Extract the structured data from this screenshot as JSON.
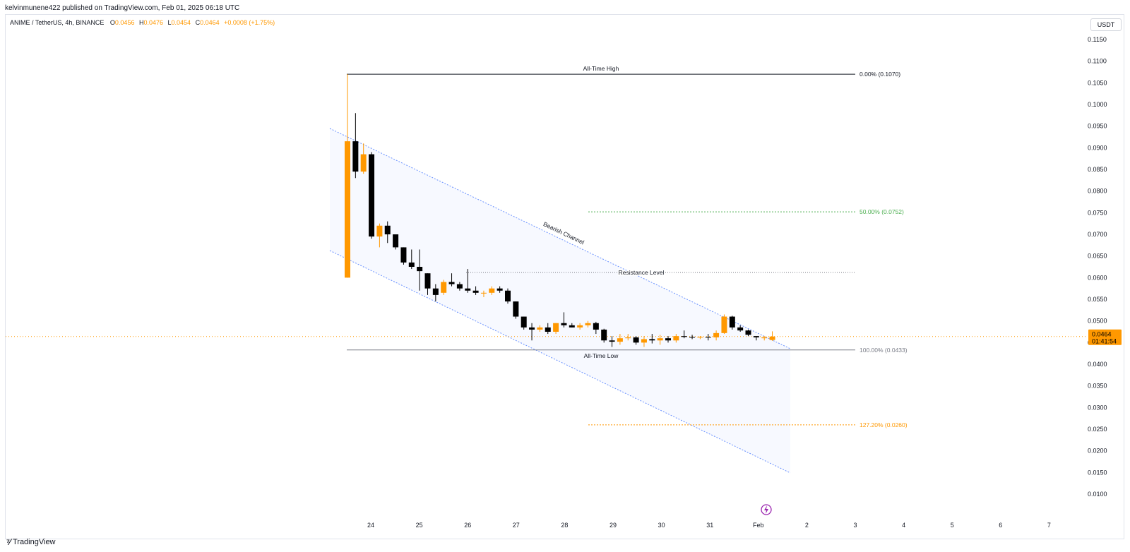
{
  "header": {
    "published": "kelvinmunene422 published on TradingView.com, Feb 01, 2025 06:18 UTC"
  },
  "legend": {
    "symbol": "ANIME / TetherUS, 4h, BINANCE",
    "o_label": "O",
    "o": "0.0456",
    "h_label": "H",
    "h": "0.0476",
    "l_label": "L",
    "l": "0.0454",
    "c_label": "C",
    "c": "0.0464",
    "change": "+0.0008 (+1.75%)"
  },
  "currency_button": "USDT",
  "price_label": {
    "price": "0.0464",
    "countdown": "01:41:54"
  },
  "footer": {
    "brand": "TradingView"
  },
  "colors": {
    "up": "#ff9800",
    "down": "#000000",
    "channel": "#2962ff",
    "fib_mid": "#4caf50",
    "fib_ext": "#ff9800",
    "text": "#131722"
  },
  "chart_data": {
    "type": "candlestick",
    "y_axis": {
      "range": [
        0.006,
        0.1195
      ],
      "ticks": [
        "0.1150",
        "0.1100",
        "0.1050",
        "0.1000",
        "0.0950",
        "0.0900",
        "0.0850",
        "0.0800",
        "0.0750",
        "0.0700",
        "0.0650",
        "0.0600",
        "0.0550",
        "0.0500",
        "0.0450",
        "0.0400",
        "0.0350",
        "0.0300",
        "0.0250",
        "0.0200",
        "0.0150",
        "0.0100"
      ]
    },
    "x_axis": {
      "ticks": [
        "24",
        "25",
        "26",
        "27",
        "28",
        "29",
        "30",
        "31",
        "Feb",
        "2",
        "3",
        "4",
        "5",
        "6",
        "7"
      ]
    },
    "candles": [
      [
        0.06,
        0.107,
        0.06,
        0.0915
      ],
      [
        0.0915,
        0.098,
        0.083,
        0.0845
      ],
      [
        0.0845,
        0.091,
        0.084,
        0.0885
      ],
      [
        0.0885,
        0.089,
        0.069,
        0.0695
      ],
      [
        0.0695,
        0.0725,
        0.067,
        0.072
      ],
      [
        0.072,
        0.073,
        0.068,
        0.07
      ],
      [
        0.07,
        0.07,
        0.0665,
        0.067
      ],
      [
        0.067,
        0.067,
        0.063,
        0.0635
      ],
      [
        0.0635,
        0.0665,
        0.062,
        0.0625
      ],
      [
        0.0625,
        0.0665,
        0.057,
        0.0615
      ],
      [
        0.061,
        0.061,
        0.056,
        0.0575
      ],
      [
        0.0575,
        0.0585,
        0.0545,
        0.056
      ],
      [
        0.0565,
        0.0595,
        0.056,
        0.059
      ],
      [
        0.059,
        0.061,
        0.058,
        0.0585
      ],
      [
        0.0585,
        0.059,
        0.057,
        0.0575
      ],
      [
        0.0575,
        0.062,
        0.0565,
        0.057
      ],
      [
        0.057,
        0.058,
        0.056,
        0.0565
      ],
      [
        0.0565,
        0.057,
        0.0555,
        0.0565
      ],
      [
        0.0565,
        0.058,
        0.056,
        0.0575
      ],
      [
        0.0575,
        0.058,
        0.0565,
        0.057
      ],
      [
        0.057,
        0.0575,
        0.054,
        0.0545
      ],
      [
        0.0545,
        0.0545,
        0.0505,
        0.051
      ],
      [
        0.051,
        0.051,
        0.048,
        0.0485
      ],
      [
        0.0485,
        0.0495,
        0.0455,
        0.048
      ],
      [
        0.048,
        0.049,
        0.0475,
        0.0485
      ],
      [
        0.0485,
        0.0495,
        0.047,
        0.0475
      ],
      [
        0.0475,
        0.0495,
        0.047,
        0.0495
      ],
      [
        0.0495,
        0.052,
        0.0485,
        0.049
      ],
      [
        0.049,
        0.0495,
        0.0485,
        0.0485
      ],
      [
        0.0485,
        0.0495,
        0.048,
        0.049
      ],
      [
        0.049,
        0.05,
        0.0485,
        0.0495
      ],
      [
        0.0495,
        0.0498,
        0.047,
        0.048
      ],
      [
        0.048,
        0.0482,
        0.045,
        0.0455
      ],
      [
        0.0455,
        0.0465,
        0.044,
        0.0452
      ],
      [
        0.0452,
        0.047,
        0.0445,
        0.046
      ],
      [
        0.046,
        0.047,
        0.0455,
        0.0462
      ],
      [
        0.0462,
        0.0465,
        0.0445,
        0.045
      ],
      [
        0.045,
        0.0465,
        0.044,
        0.0458
      ],
      [
        0.0458,
        0.047,
        0.0448,
        0.0455
      ],
      [
        0.0455,
        0.0468,
        0.0445,
        0.046
      ],
      [
        0.046,
        0.0465,
        0.045,
        0.0455
      ],
      [
        0.0455,
        0.047,
        0.045,
        0.0465
      ],
      [
        0.0465,
        0.0478,
        0.046,
        0.0463
      ],
      [
        0.0463,
        0.0468,
        0.0458,
        0.0462
      ],
      [
        0.0462,
        0.0465,
        0.0458,
        0.0463
      ],
      [
        0.0463,
        0.047,
        0.0455,
        0.0462
      ],
      [
        0.0462,
        0.0478,
        0.0455,
        0.0472
      ],
      [
        0.0472,
        0.0515,
        0.047,
        0.051
      ],
      [
        0.051,
        0.0512,
        0.048,
        0.0485
      ],
      [
        0.0485,
        0.049,
        0.0475,
        0.0478
      ],
      [
        0.0478,
        0.048,
        0.0465,
        0.0468
      ],
      [
        0.0465,
        0.0465,
        0.0455,
        0.0462
      ],
      [
        0.046,
        0.0465,
        0.0455,
        0.0462
      ],
      [
        0.0456,
        0.0476,
        0.0454,
        0.0464
      ]
    ],
    "fib_levels": [
      {
        "label": "0.00% (0.1070)",
        "price": 0.107,
        "color": "#131722"
      },
      {
        "label": "50.00% (0.0752)",
        "price": 0.0752,
        "color": "#4caf50"
      },
      {
        "label": "100.00% (0.0433)",
        "price": 0.0433,
        "color": "#787b86"
      },
      {
        "label": "127.20% (0.0260)",
        "price": 0.026,
        "color": "#ff9800"
      }
    ],
    "annotations": {
      "ath": "All-Time High",
      "atl": "All-Time Low",
      "resistance": "Resistance Level",
      "channel": "Bearish Channel"
    },
    "resistance_price": 0.0612
  }
}
